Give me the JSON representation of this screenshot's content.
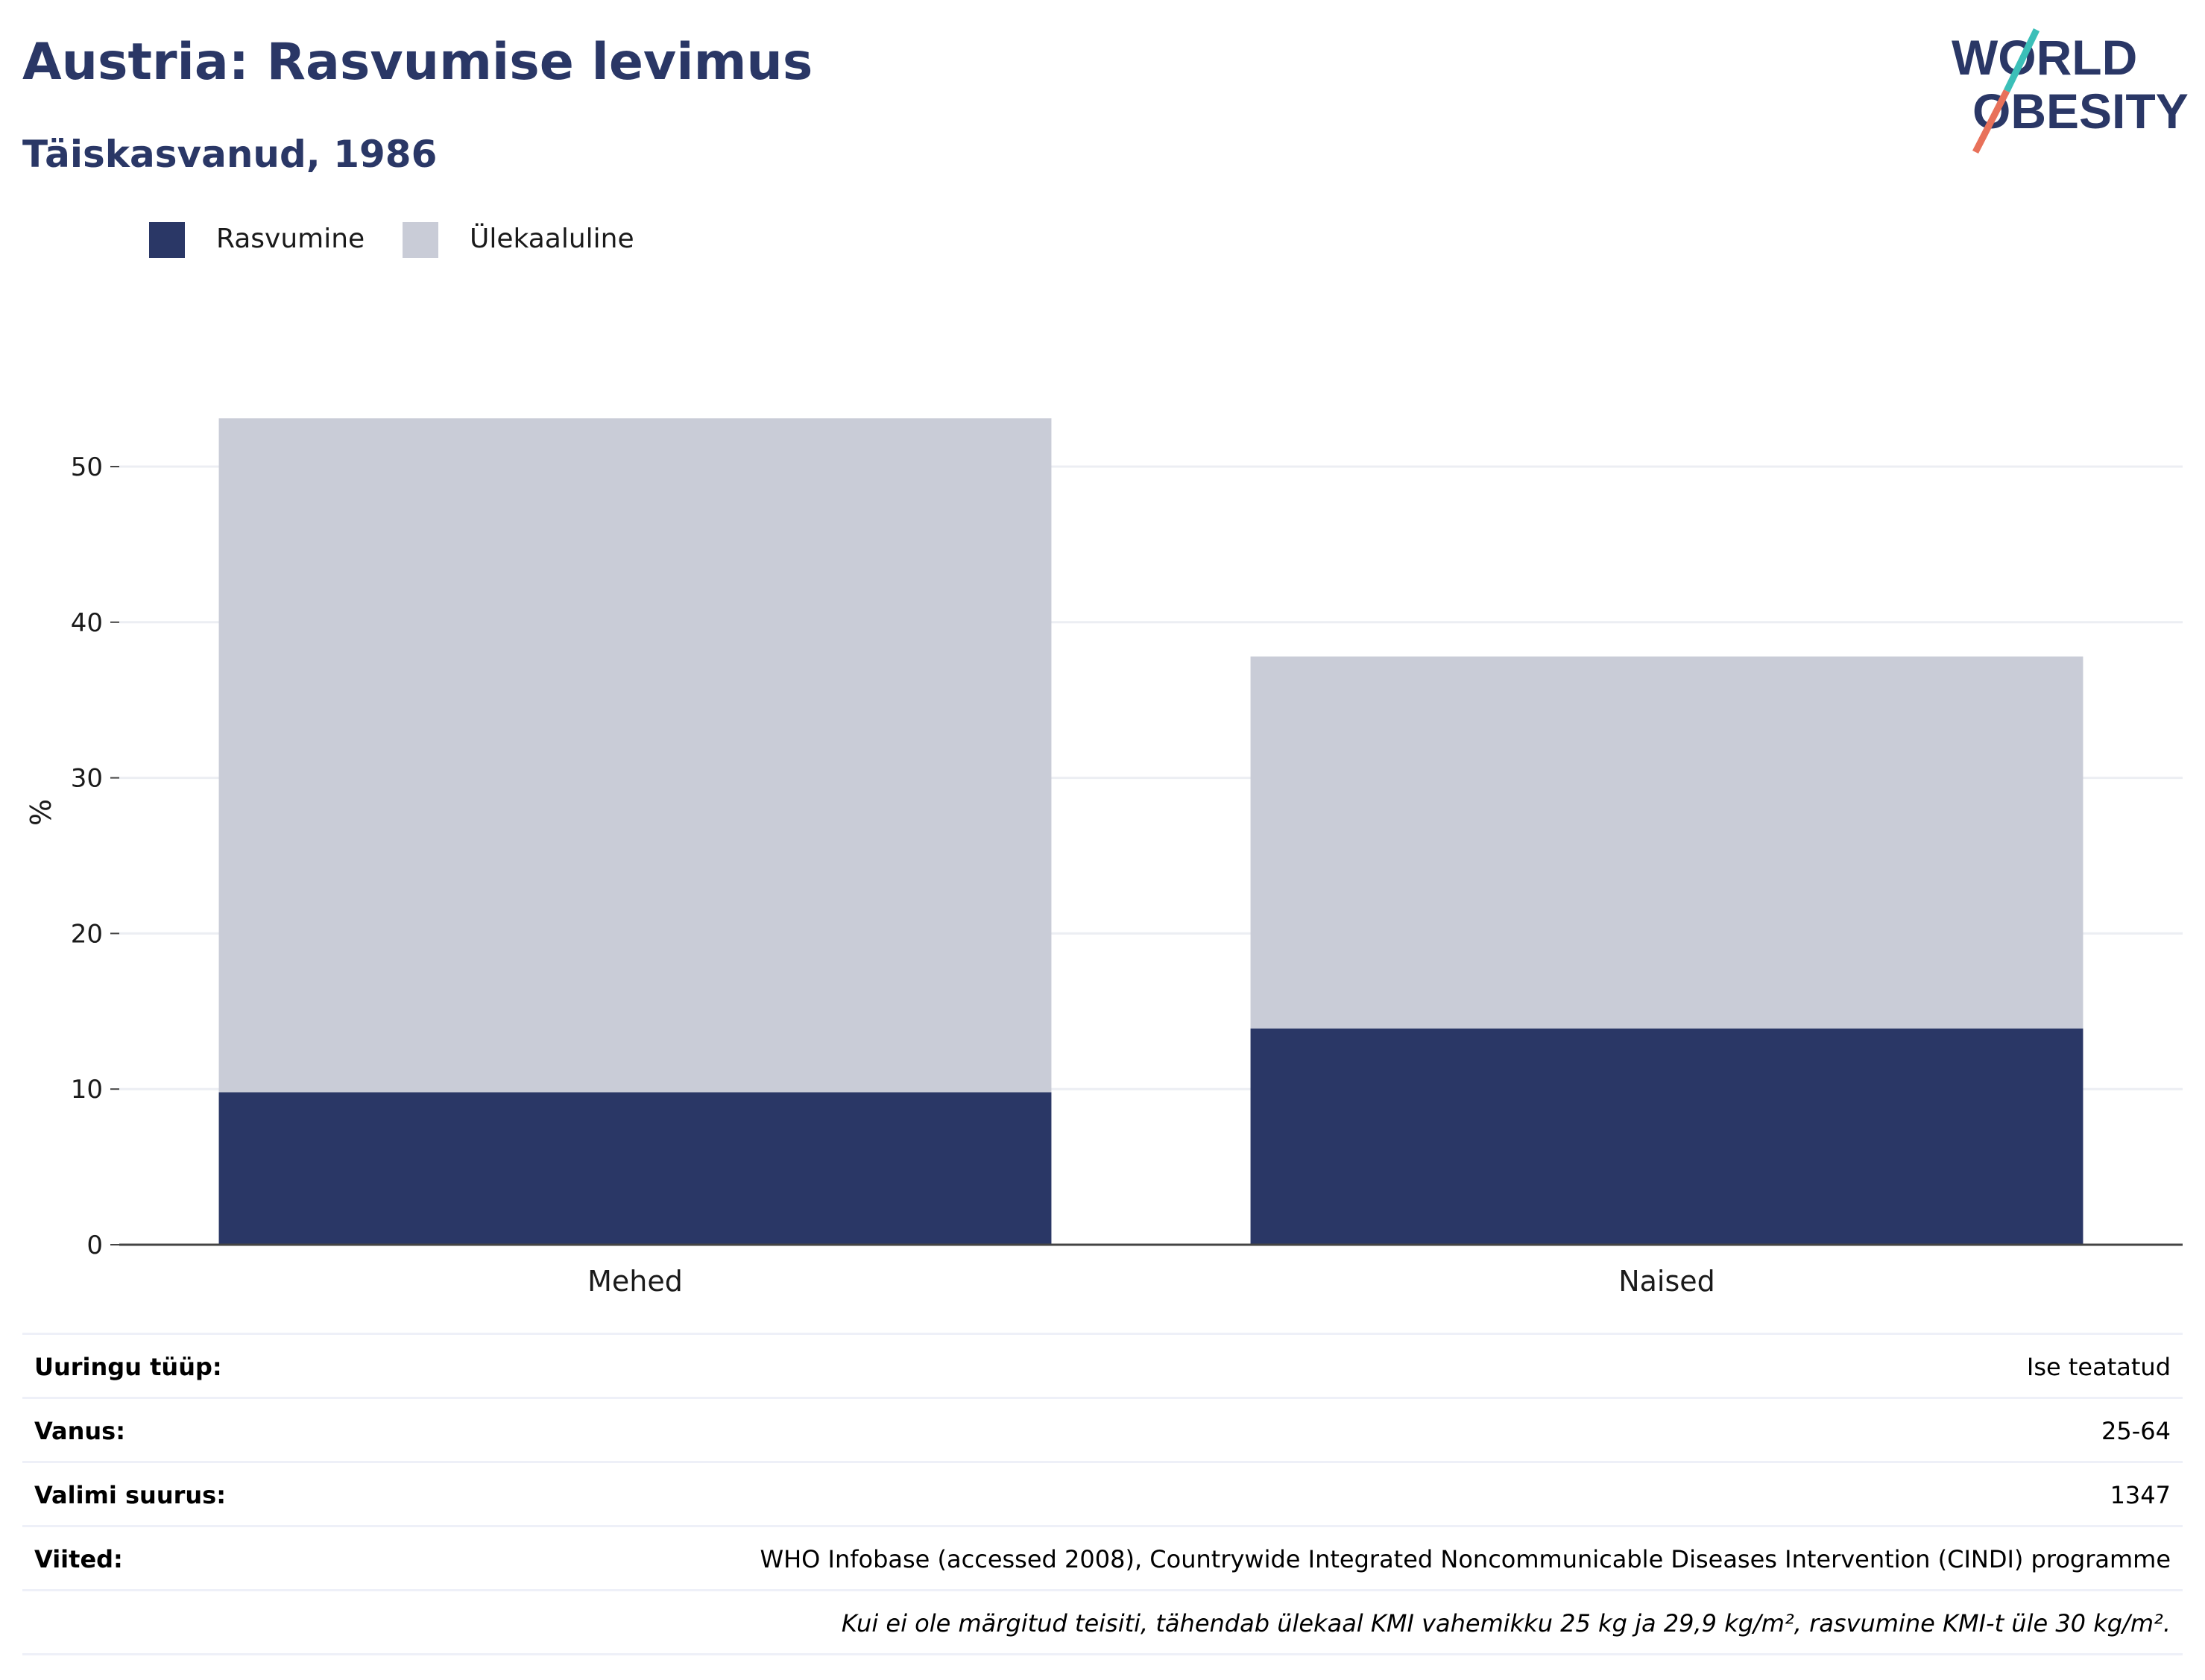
{
  "title": "Austria: Rasvumise levimus",
  "subtitle": "Täiskasvanud, 1986",
  "logo": {
    "line1": "WORLD",
    "line2": "OBESITY",
    "colors": {
      "text": "#2a3766",
      "teal": "#3bbfb8",
      "coral": "#e8715a"
    }
  },
  "legend": [
    {
      "label": "Rasvumine",
      "color": "#2a3766"
    },
    {
      "label": "Ülekaaluline",
      "color": "#c9ccd7"
    }
  ],
  "chart_data": {
    "type": "bar",
    "stacked": true,
    "categories": [
      "Mehed",
      "Naised"
    ],
    "series": [
      {
        "name": "Rasvumine",
        "color": "#2a3766",
        "values": [
          9.8,
          13.9
        ]
      },
      {
        "name": "Ülekaaluline",
        "color": "#c9ccd7",
        "values": [
          43.3,
          23.9
        ]
      }
    ],
    "ylabel": "%",
    "ylim": [
      0,
      60
    ],
    "yticks": [
      0,
      10,
      20,
      30,
      40,
      50
    ],
    "grid": true,
    "legend_position": "top-left"
  },
  "info": [
    {
      "key": "Uuringu tüüp:",
      "value": "Ise teatatud"
    },
    {
      "key": "Vanus:",
      "value": "25-64"
    },
    {
      "key": "Valimi suurus:",
      "value": "1347"
    },
    {
      "key": "Viited:",
      "value": "WHO Infobase (accessed 2008), Countrywide Integrated Noncommunicable Diseases Intervention (CINDI) programme"
    }
  ],
  "footnote": "Kui ei ole märgitud teisiti, tähendab ülekaal KMI vahemikku 25 kg ja 29,9 kg/m², rasvumine KMI-t üle 30 kg/m²."
}
